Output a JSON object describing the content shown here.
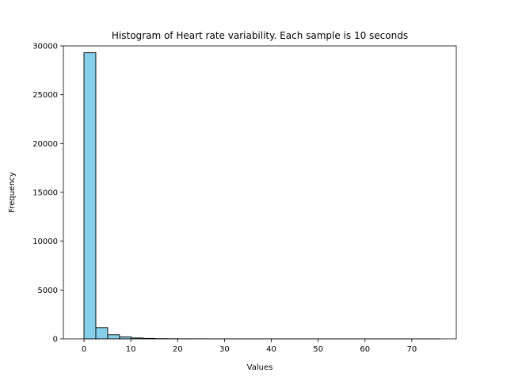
{
  "chart_data": {
    "type": "bar",
    "title": "Histogram of Heart rate variability. Each sample is 10 seconds",
    "xlabel": "Values",
    "ylabel": "Frequency",
    "xlim": [
      -4.4,
      79.5
    ],
    "ylim": [
      0,
      30000
    ],
    "xticks": [
      0,
      10,
      20,
      30,
      40,
      50,
      60,
      70
    ],
    "yticks": [
      0,
      5000,
      10000,
      15000,
      20000,
      25000,
      30000
    ],
    "grid": false,
    "legend": "none",
    "bar_color": "#87ceeb",
    "edge_color": "#000000",
    "bin_edges": [
      0,
      2.53,
      5.06,
      7.59,
      10.12,
      12.65,
      15.18,
      17.71,
      20.24,
      22.77,
      25.3,
      27.83,
      30.36,
      32.89,
      35.42,
      37.95,
      40.48,
      43.01,
      45.54,
      48.07,
      50.6,
      53.13,
      55.66,
      58.19,
      60.72,
      63.25,
      65.78,
      68.31,
      70.84,
      73.37,
      75.9
    ],
    "values": [
      29300,
      1150,
      420,
      190,
      90,
      50,
      25,
      15,
      10,
      8,
      6,
      5,
      4,
      3,
      3,
      2,
      2,
      2,
      1,
      1,
      1,
      1,
      1,
      1,
      1,
      1,
      1,
      1,
      1,
      1
    ]
  }
}
